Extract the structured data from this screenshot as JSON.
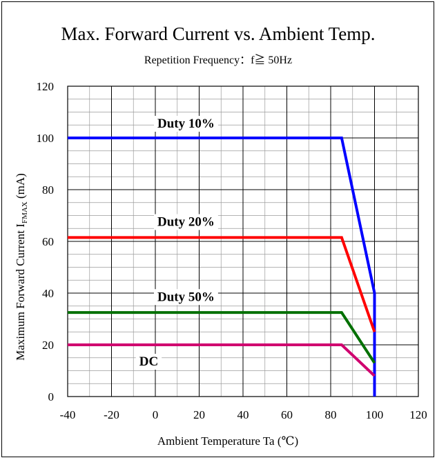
{
  "chart_data": {
    "type": "line",
    "title": "Max. Forward Current vs. Ambient Temp.",
    "subtitle": "Repetition Frequency：f≧ 50Hz",
    "xlabel": "Ambient Temperature Ta (℃)",
    "ylabel_main": "Maximum Forward Current I",
    "ylabel_sub": "FMAX",
    "ylabel_tail": " (mA)",
    "xlim": [
      -40,
      120
    ],
    "ylim": [
      0,
      120
    ],
    "x_ticks": [
      -40,
      -20,
      0,
      20,
      40,
      60,
      80,
      100,
      120
    ],
    "y_ticks": [
      0,
      20,
      40,
      60,
      80,
      100,
      120
    ],
    "grid": true,
    "series": [
      {
        "name": "Duty 10%",
        "color": "#0000ff",
        "x": [
          -40,
          85,
          100,
          100
        ],
        "y": [
          100,
          100,
          40,
          0
        ],
        "label_at": [
          14,
          104
        ]
      },
      {
        "name": "Duty 20%",
        "color": "#ff0000",
        "x": [
          -40,
          85,
          100
        ],
        "y": [
          61.5,
          61.5,
          25
        ],
        "label_at": [
          14,
          66
        ]
      },
      {
        "name": "Duty 50%",
        "color": "#007000",
        "x": [
          -40,
          85,
          100
        ],
        "y": [
          32.5,
          32.5,
          13
        ],
        "label_at": [
          14,
          37
        ]
      },
      {
        "name": "DC",
        "color": "#d0006f",
        "x": [
          -40,
          85,
          100
        ],
        "y": [
          20,
          20,
          8
        ],
        "label_at": [
          -3,
          12
        ]
      }
    ]
  }
}
